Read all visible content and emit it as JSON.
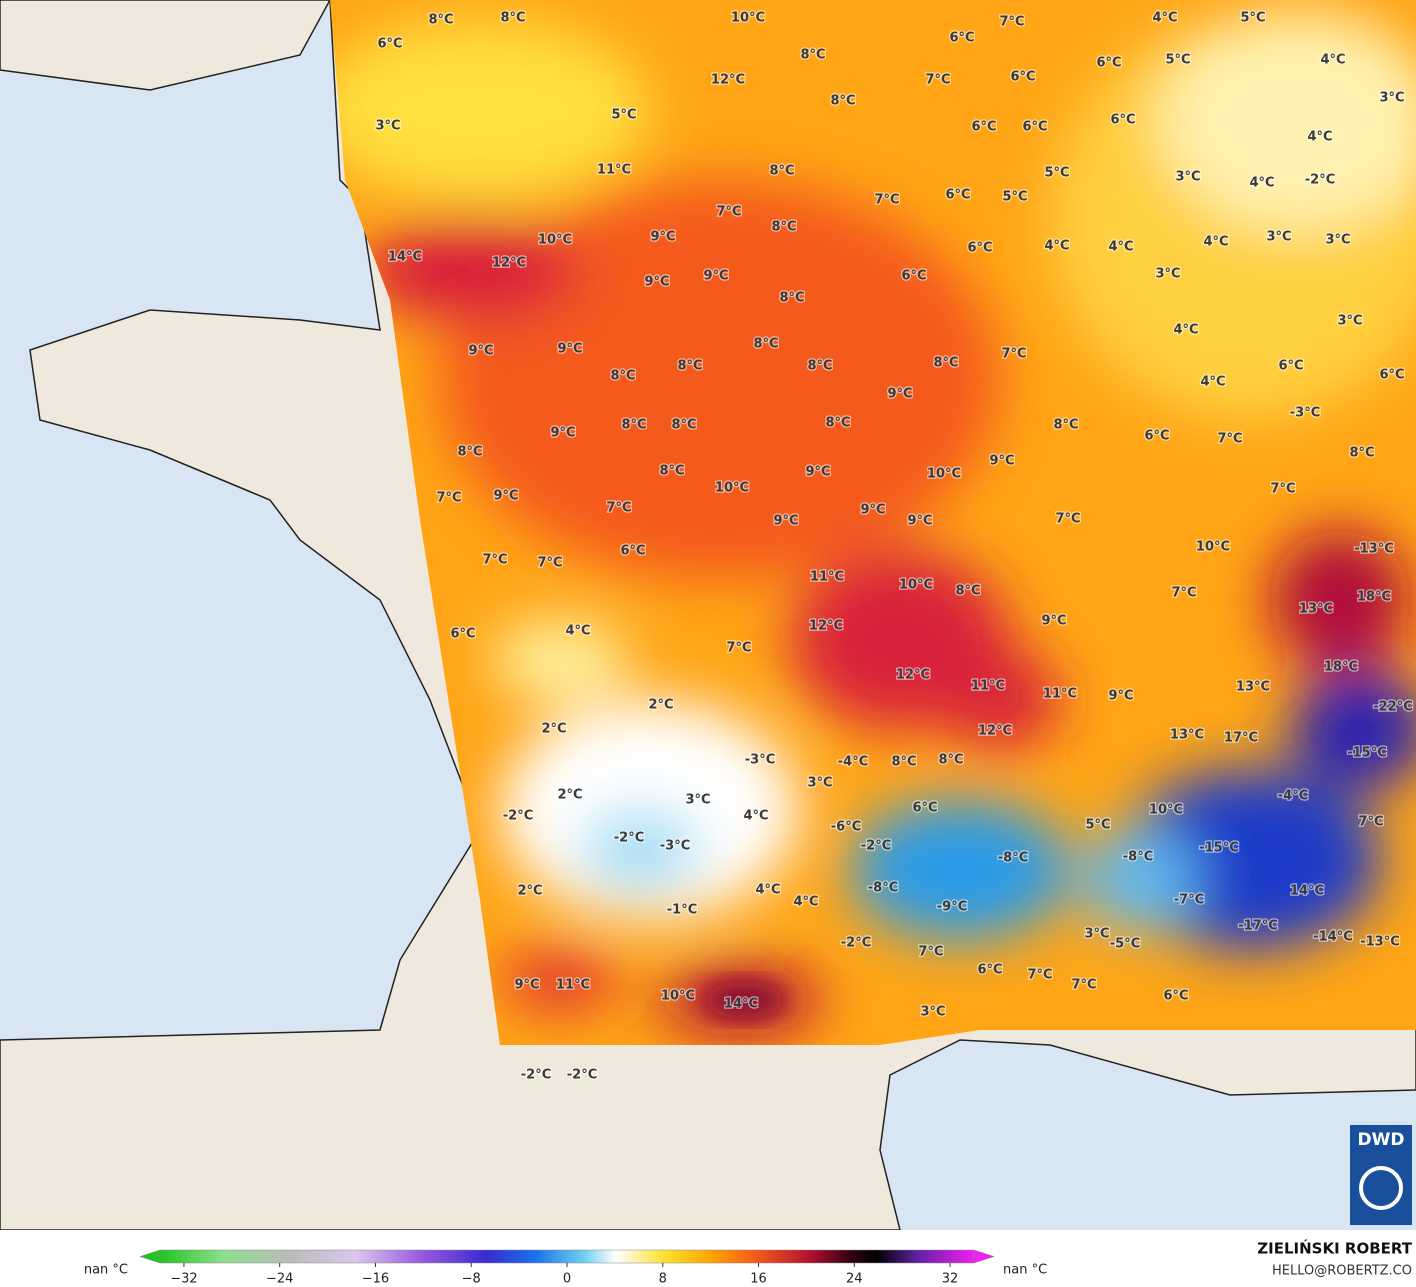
{
  "map": {
    "temperature_labels": [
      "8°C",
      "8°C",
      "6°C",
      "10°C",
      "7°C",
      "4°C",
      "5°C",
      "12°C",
      "8°C",
      "6°C",
      "6°C",
      "7°C",
      "6°C",
      "5°C",
      "4°C",
      "3°C",
      "3°C",
      "5°C",
      "8°C",
      "6°C",
      "6°C",
      "6°C",
      "4°C",
      "11°C",
      "8°C",
      "5°C",
      "3°C",
      "4°C",
      "-2°C",
      "6°C",
      "7°C",
      "5°C",
      "7°C",
      "8°C",
      "10°C",
      "9°C",
      "6°C",
      "4°C",
      "4°C",
      "4°C",
      "3°C",
      "3°C",
      "14°C",
      "12°C",
      "9°C",
      "9°C",
      "6°C",
      "3°C",
      "8°C",
      "4°C",
      "3°C",
      "9°C",
      "9°C",
      "8°C",
      "8°C",
      "8°C",
      "8°C",
      "8°C",
      "7°C",
      "6°C",
      "4°C",
      "6°C",
      "9°C",
      "-3°C",
      "9°C",
      "8°C",
      "8°C",
      "8°C",
      "8°C",
      "6°C",
      "7°C",
      "8°C",
      "10°C",
      "9°C",
      "9°C",
      "8°C",
      "8°C",
      "7°C",
      "9°C",
      "10°C",
      "7°C",
      "7°C",
      "9°C",
      "9°C",
      "9°C",
      "7°C",
      "6°C",
      "7°C",
      "7°C",
      "10°C",
      "-13°C",
      "11°C",
      "10°C",
      "8°C",
      "7°C",
      "18°C",
      "13°C",
      "6°C",
      "4°C",
      "12°C",
      "9°C",
      "7°C",
      "18°C",
      "12°C",
      "11°C",
      "11°C",
      "9°C",
      "13°C",
      "2°C",
      "-22°C",
      "2°C",
      "12°C",
      "13°C",
      "17°C",
      "-15°C",
      "-3°C",
      "-4°C",
      "8°C",
      "8°C",
      "3°C",
      "2°C",
      "3°C",
      "-4°C",
      "10°C",
      "6°C",
      "4°C",
      "-2°C",
      "-6°C",
      "5°C",
      "7°C",
      "-2°C",
      "-3°C",
      "-2°C",
      "-15°C",
      "-8°C",
      "-8°C",
      "-8°C",
      "14°C",
      "2°C",
      "4°C",
      "4°C",
      "-7°C",
      "-1°C",
      "-9°C",
      "-17°C",
      "-2°C",
      "3°C",
      "-5°C",
      "-14°C",
      "-13°C",
      "7°C",
      "6°C",
      "7°C",
      "7°C",
      "9°C",
      "11°C",
      "10°C",
      "14°C",
      "6°C",
      "3°C",
      "-2°C",
      "-2°C"
    ]
  },
  "colorbar": {
    "left_label": "nan °C",
    "right_label": "nan °C",
    "lim": [
      -34,
      34
    ],
    "ticks": [
      {
        "value": -32,
        "label": "−32"
      },
      {
        "value": -24,
        "label": "−24"
      },
      {
        "value": -16,
        "label": "−16"
      },
      {
        "value": -8,
        "label": "−8"
      },
      0,
      8,
      16,
      24,
      32
    ]
  },
  "credit": {
    "author": "ZIELIŃSKI ROBERT",
    "contact": "HELLO@ROBERTZ.CO"
  },
  "logo": {
    "text": "DWD"
  }
}
